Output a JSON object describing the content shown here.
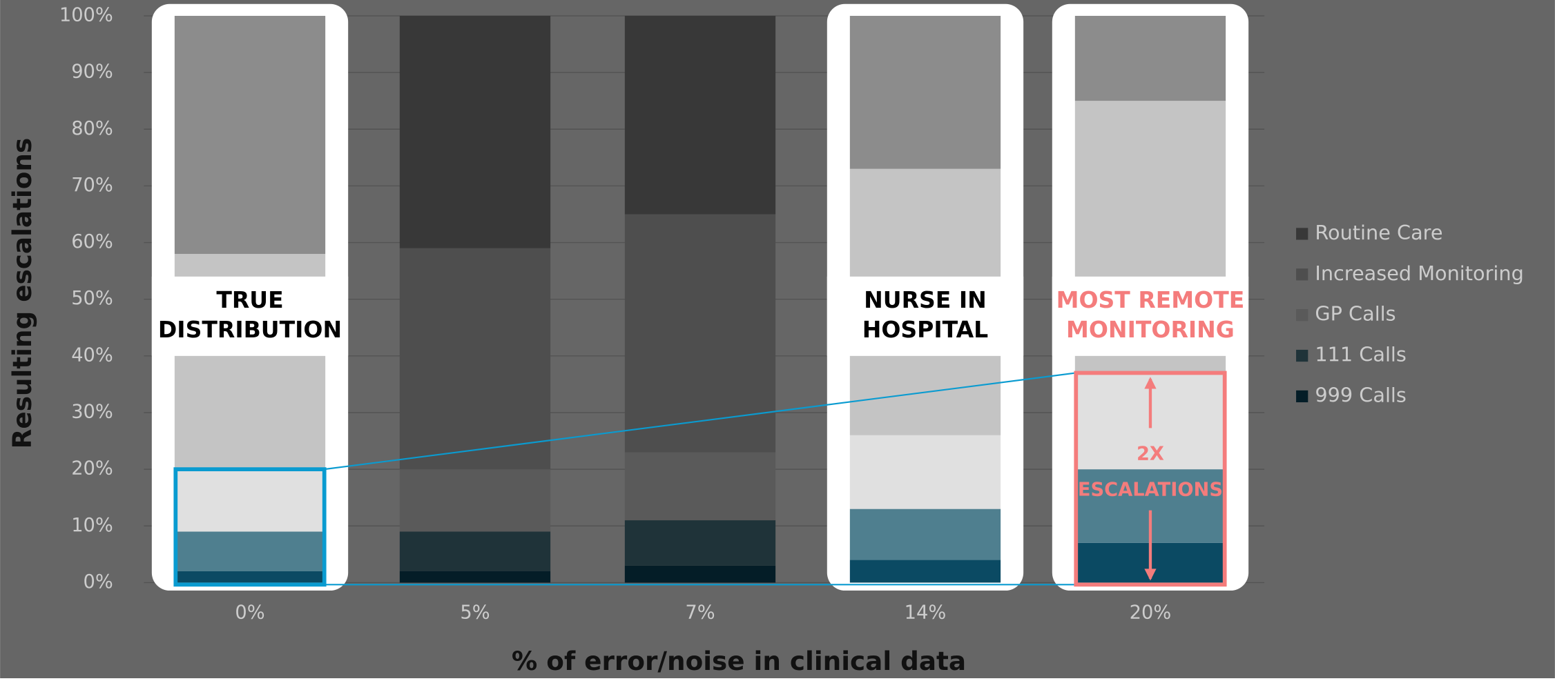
{
  "chart_data": {
    "type": "stacked_bar",
    "xlabel": "% of error/noise in clinical data",
    "ylabel": "Resulting escalations",
    "categories": [
      "0%",
      "5%",
      "7%",
      "14%",
      "20%"
    ],
    "series": [
      {
        "name": "999 Calls",
        "color": "#0b4a63",
        "values": [
          2,
          2,
          3,
          4,
          7
        ]
      },
      {
        "name": "111 Calls",
        "color": "#4f7f8f",
        "values": [
          7,
          7,
          8,
          9,
          13
        ]
      },
      {
        "name": "GP Calls",
        "color": "#e0e0e0",
        "values": [
          11,
          11,
          12,
          13,
          17
        ]
      },
      {
        "name": "Increased Monitoring",
        "color": "#c4c4c4",
        "values": [
          38,
          39,
          42,
          47,
          48
        ]
      },
      {
        "name": "Routine Care",
        "color": "#8c8c8c",
        "values": [
          42,
          41,
          35,
          27,
          15
        ]
      }
    ],
    "ylim": [
      0,
      100
    ],
    "yticks": [
      {
        "value": 0,
        "label": "0%"
      },
      {
        "value": 10,
        "label": "10%"
      },
      {
        "value": 20,
        "label": "20%"
      },
      {
        "value": 30,
        "label": "30%"
      },
      {
        "value": 40,
        "label": "40%"
      },
      {
        "value": 50,
        "label": "50%"
      },
      {
        "value": 60,
        "label": "60%"
      },
      {
        "value": 70,
        "label": "70%"
      },
      {
        "value": 80,
        "label": "80%"
      },
      {
        "value": 90,
        "label": "90%"
      },
      {
        "value": 100,
        "label": "100%"
      }
    ],
    "grid": true,
    "legend": "right",
    "highlighted": [
      0,
      3,
      4
    ],
    "annotations": [
      {
        "category": 0,
        "lines": [
          "TRUE",
          "DISTRIBUTION"
        ],
        "color": "#000000"
      },
      {
        "category": 3,
        "lines": [
          "NURSE IN",
          "HOSPITAL"
        ],
        "color": "#000000"
      },
      {
        "category": 4,
        "lines": [
          "MOST REMOTE",
          "MONITORING"
        ],
        "color": "#f47c7c"
      }
    ],
    "callout": {
      "lines": [
        "2X",
        "ESCALATIONS"
      ],
      "color": "#f47c7c",
      "box_color": "#0a9bd0"
    }
  }
}
